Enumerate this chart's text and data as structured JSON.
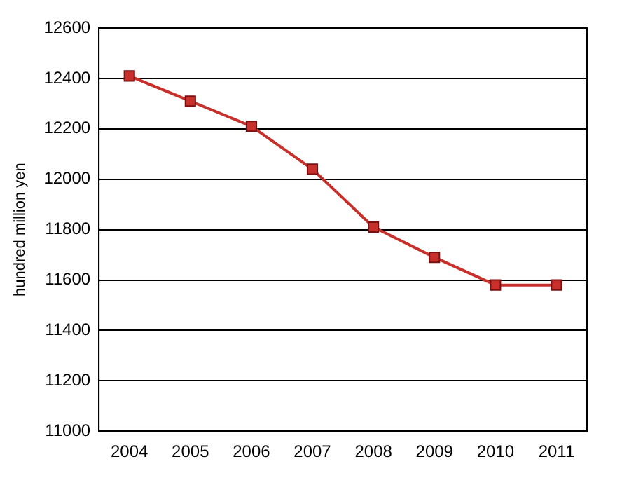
{
  "chart_data": {
    "type": "line",
    "ylabel": "hundred million yen",
    "categories": [
      "2004",
      "2005",
      "2006",
      "2007",
      "2008",
      "2009",
      "2010",
      "2011"
    ],
    "series": [
      {
        "color": "#c8302c",
        "values": [
          12410,
          12310,
          12210,
          12040,
          11810,
          11690,
          11580,
          11580
        ]
      }
    ],
    "ylim": [
      11000,
      12600
    ],
    "yticks": [
      11000,
      11200,
      11400,
      11600,
      11800,
      12000,
      12200,
      12400,
      12600
    ],
    "grid": "y",
    "legend": false,
    "marker": "square",
    "line_style": "solid"
  }
}
